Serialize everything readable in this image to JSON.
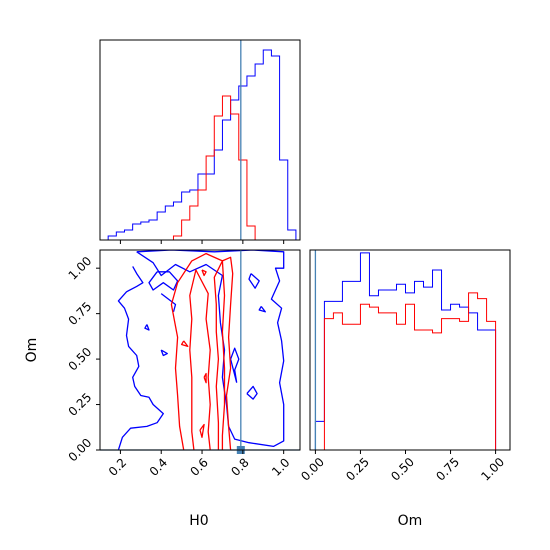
{
  "chart_data": {
    "type": "corner",
    "parameters": [
      "H0",
      "Om"
    ],
    "truth": {
      "H0": 0.79,
      "Om": 0.0
    },
    "colors": {
      "series_a": "#0000ff",
      "series_b": "#ff0000",
      "truth": "#4682b4"
    },
    "hist_H0": {
      "xlim": [
        0.1,
        1.08
      ],
      "ticks": [
        0.2,
        0.4,
        0.6,
        0.8,
        1.0
      ],
      "edges": [
        0.1,
        0.14,
        0.18,
        0.22,
        0.26,
        0.3,
        0.34,
        0.38,
        0.42,
        0.46,
        0.5,
        0.54,
        0.58,
        0.62,
        0.66,
        0.7,
        0.74,
        0.78,
        0.82,
        0.86,
        0.9,
        0.94,
        0.98,
        1.02,
        1.06
      ],
      "series": [
        {
          "color": "#0000ff",
          "counts": [
            0,
            2,
            4,
            5,
            8,
            9,
            10,
            14,
            17,
            19,
            24,
            25,
            33,
            33,
            45,
            60,
            70,
            77,
            82,
            88,
            95,
            92,
            40,
            5
          ]
        },
        {
          "color": "#ff0000",
          "counts": [
            0,
            0,
            0,
            0,
            0,
            0,
            0,
            0,
            0,
            2,
            10,
            17,
            25,
            42,
            62,
            72,
            63,
            40,
            7,
            0,
            0,
            0,
            0,
            0
          ]
        }
      ],
      "ymax": 100
    },
    "hist_Om": {
      "xlim": [
        -0.03,
        1.08
      ],
      "ticks": [
        0.0,
        0.25,
        0.5,
        0.75,
        1.0
      ],
      "tick_labels": [
        "0.00",
        "0.25",
        "0.50",
        "0.75",
        "1.00"
      ],
      "edges": [
        0.0,
        0.05,
        0.1,
        0.15,
        0.2,
        0.25,
        0.3,
        0.35,
        0.4,
        0.45,
        0.5,
        0.55,
        0.6,
        0.65,
        0.7,
        0.75,
        0.8,
        0.85,
        0.9,
        0.95,
        1.0,
        1.05
      ],
      "series": [
        {
          "color": "#0000ff",
          "counts": [
            10,
            52,
            52,
            59,
            59,
            69,
            54,
            56,
            56,
            58,
            55,
            59,
            57,
            63,
            49,
            51,
            50,
            48,
            42,
            42,
            0
          ]
        },
        {
          "color": "#ff0000",
          "counts": [
            0,
            46,
            48,
            44,
            44,
            51,
            50,
            48,
            48,
            44,
            51,
            42,
            42,
            41,
            46,
            46,
            45,
            55,
            53,
            45,
            0
          ]
        }
      ],
      "ymax": 70
    },
    "contour": {
      "xlim": [
        0.1,
        1.08
      ],
      "ylim": [
        0.0,
        1.1
      ],
      "xticks": [
        0.2,
        0.4,
        0.6,
        0.8,
        1.0
      ],
      "yticks": [
        0.0,
        0.25,
        0.5,
        0.75,
        1.0
      ],
      "ytick_labels": [
        "0.00",
        "0.25",
        "0.50",
        "0.75",
        "1.00"
      ],
      "series": [
        {
          "color": "#0000ff",
          "paths": [
            [
              [
                0.28,
                1.09
              ],
              [
                0.45,
                1.1
              ],
              [
                0.66,
                1.09
              ],
              [
                0.85,
                1.1
              ],
              [
                1.0,
                1.09
              ],
              [
                1.0,
                1.0
              ],
              [
                0.96,
                1.0
              ],
              [
                0.98,
                0.93
              ],
              [
                0.94,
                0.83
              ],
              [
                0.99,
                0.78
              ],
              [
                0.97,
                0.7
              ],
              [
                0.99,
                0.6
              ],
              [
                1.0,
                0.49
              ],
              [
                0.98,
                0.37
              ],
              [
                1.0,
                0.25
              ],
              [
                1.0,
                0.05
              ],
              [
                0.95,
                0.02
              ],
              [
                0.83,
                0.04
              ],
              [
                0.76,
                0.06
              ],
              [
                0.73,
                0.13
              ],
              [
                0.72,
                0.25
              ],
              [
                0.7,
                0.4
              ],
              [
                0.71,
                0.55
              ],
              [
                0.69,
                0.7
              ],
              [
                0.68,
                0.85
              ],
              [
                0.7,
                0.96
              ],
              [
                0.62,
                1.02
              ],
              [
                0.54,
                0.98
              ],
              [
                0.47,
                1.02
              ],
              [
                0.4,
                0.96
              ],
              [
                0.36,
                1.03
              ],
              [
                0.28,
                1.09
              ]
            ],
            [
              [
                0.19,
                0.0
              ],
              [
                0.21,
                0.07
              ],
              [
                0.25,
                0.12
              ],
              [
                0.33,
                0.13
              ],
              [
                0.38,
                0.15
              ],
              [
                0.41,
                0.2
              ],
              [
                0.36,
                0.25
              ],
              [
                0.34,
                0.29
              ],
              [
                0.3,
                0.3
              ],
              [
                0.27,
                0.35
              ],
              [
                0.26,
                0.4
              ],
              [
                0.29,
                0.46
              ],
              [
                0.28,
                0.52
              ],
              [
                0.24,
                0.57
              ],
              [
                0.23,
                0.63
              ],
              [
                0.24,
                0.72
              ],
              [
                0.22,
                0.78
              ],
              [
                0.19,
                0.82
              ],
              [
                0.23,
                0.87
              ],
              [
                0.28,
                0.9
              ],
              [
                0.31,
                0.92
              ],
              [
                0.28,
                0.97
              ],
              [
                0.26,
                1.01
              ]
            ],
            [
              [
                0.38,
                0.98
              ],
              [
                0.34,
                0.92
              ],
              [
                0.36,
                0.88
              ],
              [
                0.41,
                0.92
              ],
              [
                0.46,
                0.88
              ],
              [
                0.48,
                0.93
              ],
              [
                0.44,
                0.98
              ],
              [
                0.38,
                0.98
              ]
            ],
            [
              [
                0.4,
                0.86
              ],
              [
                0.47,
                0.8
              ],
              [
                0.46,
                0.76
              ]
            ],
            [
              [
                0.84,
                0.97
              ],
              [
                0.88,
                0.93
              ],
              [
                0.86,
                0.89
              ],
              [
                0.83,
                0.94
              ],
              [
                0.84,
                0.97
              ]
            ],
            [
              [
                0.89,
                0.79
              ],
              [
                0.91,
                0.76
              ],
              [
                0.88,
                0.77
              ],
              [
                0.89,
                0.79
              ]
            ],
            [
              [
                0.77,
                0.37
              ],
              [
                0.76,
                0.44
              ],
              [
                0.78,
                0.5
              ],
              [
                0.76,
                0.56
              ],
              [
                0.74,
                0.5
              ],
              [
                0.77,
                0.37
              ]
            ],
            [
              [
                0.82,
                0.31
              ],
              [
                0.85,
                0.35
              ],
              [
                0.87,
                0.31
              ],
              [
                0.85,
                0.28
              ],
              [
                0.82,
                0.31
              ]
            ],
            [
              [
                0.33,
                0.69
              ],
              [
                0.34,
                0.66
              ],
              [
                0.32,
                0.67
              ],
              [
                0.33,
                0.69
              ]
            ],
            [
              [
                0.4,
                0.55
              ],
              [
                0.43,
                0.53
              ],
              [
                0.41,
                0.52
              ],
              [
                0.4,
                0.55
              ]
            ]
          ]
        },
        {
          "color": "#ff0000",
          "paths": [
            [
              [
                0.51,
                0.0
              ],
              [
                0.49,
                0.13
              ],
              [
                0.48,
                0.3
              ],
              [
                0.47,
                0.45
              ],
              [
                0.48,
                0.62
              ],
              [
                0.45,
                0.8
              ],
              [
                0.48,
                0.92
              ],
              [
                0.55,
                1.04
              ],
              [
                0.62,
                1.08
              ],
              [
                0.7,
                1.04
              ],
              [
                0.74,
                1.06
              ],
              [
                0.75,
                0.97
              ],
              [
                0.74,
                0.8
              ],
              [
                0.73,
                0.62
              ],
              [
                0.74,
                0.45
              ],
              [
                0.72,
                0.3
              ],
              [
                0.73,
                0.13
              ],
              [
                0.74,
                0.0
              ]
            ],
            [
              [
                0.56,
                0.0
              ],
              [
                0.55,
                0.1
              ],
              [
                0.55,
                0.25
              ],
              [
                0.55,
                0.4
              ],
              [
                0.54,
                0.55
              ],
              [
                0.55,
                0.72
              ],
              [
                0.54,
                0.85
              ],
              [
                0.57,
                0.99
              ],
              [
                0.63,
                0.86
              ],
              [
                0.62,
                0.72
              ],
              [
                0.64,
                0.55
              ],
              [
                0.63,
                0.4
              ],
              [
                0.64,
                0.25
              ],
              [
                0.63,
                0.1
              ],
              [
                0.64,
                0.0
              ]
            ],
            [
              [
                0.68,
                0.0
              ],
              [
                0.68,
                0.15
              ],
              [
                0.67,
                0.35
              ],
              [
                0.68,
                0.5
              ],
              [
                0.67,
                0.65
              ],
              [
                0.67,
                0.8
              ],
              [
                0.66,
                0.95
              ],
              [
                0.7,
                1.04
              ],
              [
                0.71,
                0.85
              ],
              [
                0.7,
                0.65
              ],
              [
                0.71,
                0.45
              ],
              [
                0.71,
                0.25
              ],
              [
                0.7,
                0.08
              ],
              [
                0.7,
                0.0
              ]
            ],
            [
              [
                0.59,
                0.11
              ],
              [
                0.61,
                0.14
              ],
              [
                0.6,
                0.07
              ],
              [
                0.59,
                0.11
              ]
            ],
            [
              [
                0.61,
                0.4
              ],
              [
                0.62,
                0.42
              ],
              [
                0.62,
                0.37
              ],
              [
                0.61,
                0.4
              ]
            ],
            [
              [
                0.51,
                0.6
              ],
              [
                0.53,
                0.57
              ],
              [
                0.5,
                0.58
              ],
              [
                0.51,
                0.6
              ]
            ],
            [
              [
                0.6,
                0.99
              ],
              [
                0.62,
                0.98
              ],
              [
                0.61,
                0.96
              ],
              [
                0.6,
                0.99
              ]
            ]
          ]
        }
      ]
    }
  }
}
